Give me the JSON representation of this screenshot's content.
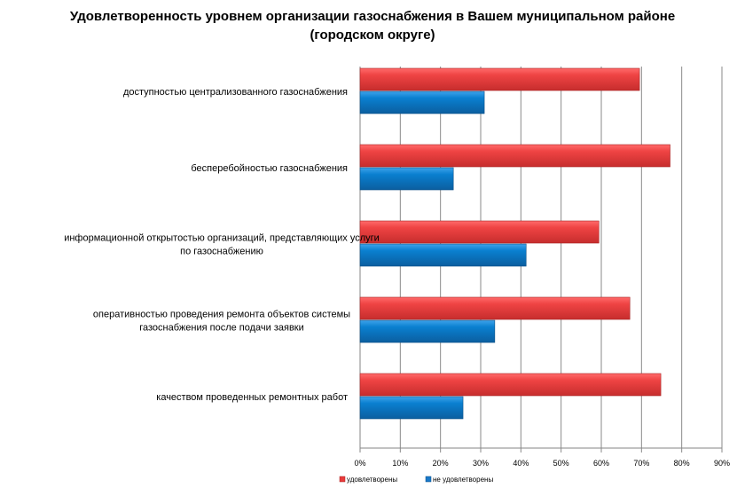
{
  "chart_data": {
    "type": "bar",
    "orientation": "horizontal",
    "title": "Удовлетворенность уровнем организации газоснабжения в Вашем муниципальном районе (городском округе)",
    "categories": [
      [
        "доступностью централизованного газоснабжения"
      ],
      [
        "бесперебойностью газоснабжения"
      ],
      [
        "информационной открытостью организаций, представляющих услуги",
        "по газоснабжению"
      ],
      [
        "оперативностью проведения  ремонта объектов  системы",
        "газоснабжения после подачи заявки"
      ],
      [
        "качеством проведенных ремонтных работ"
      ]
    ],
    "series": [
      {
        "name": "удовлетворены",
        "color": "#e83a3a",
        "values": [
          69.5,
          77.1,
          59.4,
          67.1,
          74.8
        ]
      },
      {
        "name": "не удовлетворены",
        "color": "#1a78c8",
        "values": [
          30.9,
          23.2,
          41.3,
          33.5,
          25.6
        ]
      }
    ],
    "xlim": [
      0,
      90
    ],
    "xticks": [
      "0%",
      "10%",
      "20%",
      "30%",
      "40%",
      "50%",
      "60%",
      "70%",
      "80%",
      "90%"
    ],
    "grid": true,
    "legend": "bottom"
  }
}
